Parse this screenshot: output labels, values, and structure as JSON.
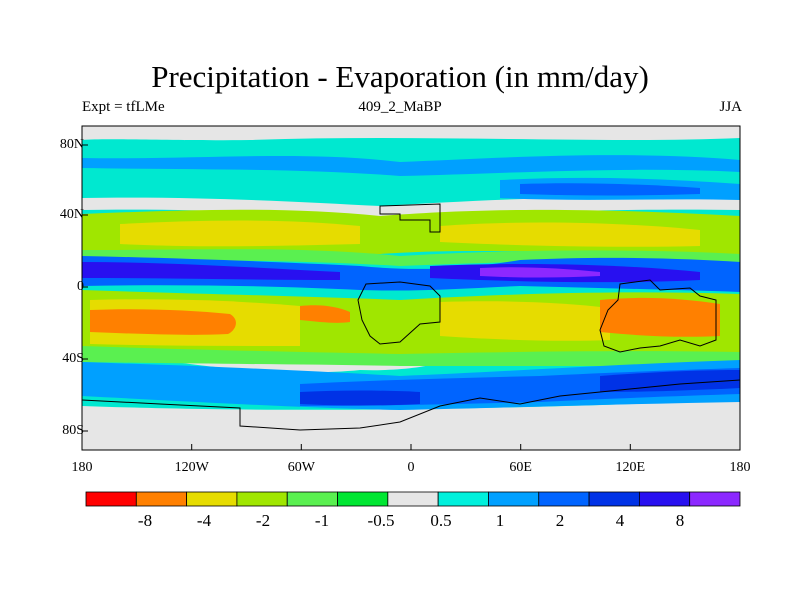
{
  "title": "Precipitation - Evaporation (in mm/day)",
  "subtitle_left": "Expt = tfLMe",
  "subtitle_center": "409_2_MaBP",
  "subtitle_right": "JJA",
  "map": {
    "y_axis_labels": [
      "80N",
      "40N",
      "0",
      "40S",
      "80S"
    ],
    "x_axis_labels": [
      "180",
      "120W",
      "60W",
      "0",
      "60E",
      "120E",
      "180"
    ],
    "lat_range": [
      -90,
      90
    ],
    "lon_range": [
      -180,
      180
    ],
    "ocean_background": "#00e8d0",
    "coastline_color": "#000000",
    "colorbar": {
      "colors": [
        "#ff0000",
        "#ff8000",
        "#e6dc00",
        "#a0e600",
        "#5af050",
        "#00e632",
        "#e6e6e6",
        "#00f0dc",
        "#00a0ff",
        "#0064ff",
        "#0032e6",
        "#2810f0",
        "#8c28ff"
      ],
      "labels": [
        "-8",
        "-4",
        "-2",
        "-1",
        "-0.5",
        "0.5",
        "1",
        "2",
        "4",
        "8"
      ]
    }
  }
}
